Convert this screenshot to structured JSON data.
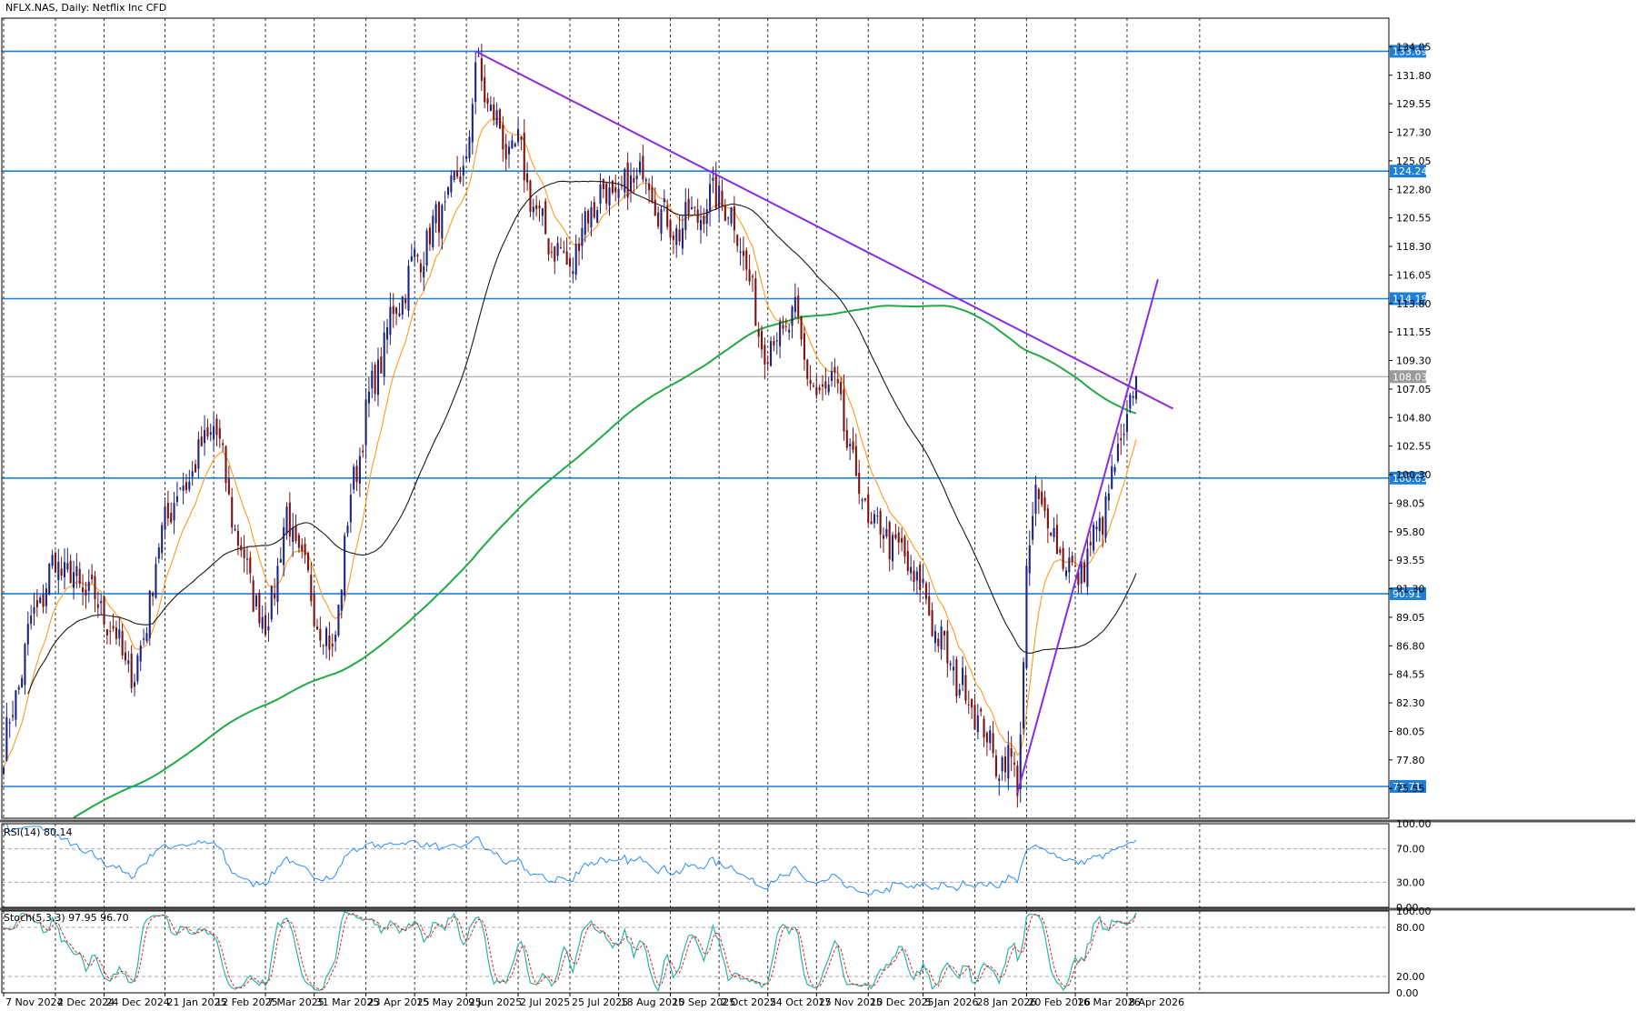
{
  "header": {
    "title": "NFLX.NAS, Daily:  Netflix Inc CFD"
  },
  "colors": {
    "bull": "#1a237e",
    "bear": "#7b1010",
    "bull_highlight": "#00a020",
    "ma_fast": "#ff9a1f",
    "ma_mid": "#1a1a1a",
    "ma_slow": "#22aa44",
    "hline": "#1e7fd8",
    "trend": "#8a2be2",
    "rsi": "#2a8cff",
    "stoch_main": "#2bb3a8",
    "stoch_signal": "#e02020",
    "grid": "#333333"
  },
  "chart_data": [
    {
      "type": "candlestick",
      "title": "NFLX.NAS, Daily:  Netflix Inc CFD",
      "x_tick_labels": [
        "7 Nov 2024",
        "2 Dec 2024",
        "24 Dec 2024",
        "21 Jan 2025",
        "12 Feb 2025",
        "7 Mar 2025",
        "31 Mar 2025",
        "23 Apr 2025",
        "15 May 2025",
        "9 Jun 2025",
        "2 Jul 2025",
        "25 Jul 2025",
        "18 Aug 2025",
        "10 Sep 2025",
        "2 Oct 2025",
        "24 Oct 2025",
        "17 Nov 2025",
        "10 Dec 2025",
        "5 Jan 2026",
        "28 Jan 2026",
        "20 Feb 2026",
        "16 Mar 2026",
        "8 Apr 2026"
      ],
      "y_tick_labels": [
        "134.05",
        "131.80",
        "129.55",
        "127.30",
        "125.05",
        "122.80",
        "120.55",
        "118.30",
        "116.05",
        "113.80",
        "111.55",
        "109.30",
        "107.05",
        "104.80",
        "102.55",
        "100.30",
        "98.05",
        "95.80",
        "93.55",
        "91.30",
        "89.05",
        "86.80",
        "84.55",
        "82.30",
        "80.05",
        "77.80",
        "75.55"
      ],
      "ylim": [
        73.2,
        136.3
      ],
      "price_levels": [
        {
          "label": "133.69",
          "value": 133.69,
          "style": "support-resistance"
        },
        {
          "label": "124.24",
          "value": 124.24,
          "style": "support-resistance"
        },
        {
          "label": "114.18",
          "value": 114.18,
          "style": "support-resistance"
        },
        {
          "label": "108.03",
          "value": 108.03,
          "style": "current-price"
        },
        {
          "label": "100.03",
          "value": 100.03,
          "style": "support-resistance"
        },
        {
          "label": "90.91",
          "value": 90.91,
          "style": "support-resistance"
        },
        {
          "label": "75.71",
          "value": 75.71,
          "style": "support-resistance"
        }
      ],
      "trendlines": [
        {
          "from": {
            "date": "12 Jun 2025",
            "price": 133.69
          },
          "to": {
            "date": "30 Apr 2026",
            "price": 105.5
          }
        },
        {
          "from": {
            "date": "17 Feb 2026",
            "price": 75.2
          },
          "to": {
            "date": "23 Apr 2026",
            "price": 115.7
          }
        }
      ],
      "anchors": [
        [
          "7 Nov 2024",
          78.5
        ],
        [
          "20 Nov 2024",
          88.5
        ],
        [
          "2 Dec 2024",
          93.5
        ],
        [
          "24 Dec 2024",
          89.5
        ],
        [
          "7 Jan 2025",
          84.0
        ],
        [
          "21 Jan 2025",
          97.0
        ],
        [
          "5 Feb 2025",
          101.5
        ],
        [
          "12 Feb 2025",
          104.5
        ],
        [
          "24 Feb 2025",
          95.0
        ],
        [
          "7 Mar 2025",
          88.0
        ],
        [
          "18 Mar 2025",
          97.0
        ],
        [
          "31 Mar 2025",
          90.0
        ],
        [
          "8 Apr 2025",
          86.0
        ],
        [
          "16 Apr 2025",
          98.5
        ],
        [
          "23 Apr 2025",
          105.0
        ],
        [
          "5 May 2025",
          112.5
        ],
        [
          "15 May 2025",
          117.0
        ],
        [
          "28 May 2025",
          121.0
        ],
        [
          "9 Jun 2025",
          125.0
        ],
        [
          "12 Jun 2025",
          132.5
        ],
        [
          "20 Jun 2025",
          128.5
        ],
        [
          "27 Jun 2025",
          125.5
        ],
        [
          "2 Jul 2025",
          126.0
        ],
        [
          "11 Jul 2025",
          120.0
        ],
        [
          "25 Jul 2025",
          116.5
        ],
        [
          "1 Aug 2025",
          120.5
        ],
        [
          "8 Aug 2025",
          122.5
        ],
        [
          "18 Aug 2025",
          122.0
        ],
        [
          "28 Aug 2025",
          124.5
        ],
        [
          "10 Sep 2025",
          119.5
        ],
        [
          "19 Sep 2025",
          120.5
        ],
        [
          "2 Oct 2025",
          122.5
        ],
        [
          "13 Oct 2025",
          119.0
        ],
        [
          "21 Oct 2025",
          111.5
        ],
        [
          "24 Oct 2025",
          110.5
        ],
        [
          "6 Nov 2025",
          112.5
        ],
        [
          "17 Nov 2025",
          106.0
        ],
        [
          "24 Nov 2025",
          108.0
        ],
        [
          "1 Dec 2025",
          103.0
        ],
        [
          "10 Dec 2025",
          96.5
        ],
        [
          "22 Dec 2025",
          95.0
        ],
        [
          "5 Jan 2026",
          91.0
        ],
        [
          "15 Jan 2026",
          85.5
        ],
        [
          "28 Jan 2026",
          82.0
        ],
        [
          "5 Feb 2026",
          78.0
        ],
        [
          "13 Feb 2026",
          77.5
        ],
        [
          "17 Feb 2026",
          76.5
        ],
        [
          "19 Feb 2026",
          85.0
        ],
        [
          "20 Feb 2026",
          91.5
        ],
        [
          "25 Feb 2026",
          99.0
        ],
        [
          "5 Mar 2026",
          95.5
        ],
        [
          "16 Mar 2026",
          92.0
        ],
        [
          "25 Mar 2026",
          95.5
        ],
        [
          "2 Apr 2026",
          100.5
        ],
        [
          "8 Apr 2026",
          104.5
        ],
        [
          "13 Apr 2026",
          108.0
        ]
      ],
      "last_date": "13 Apr 2026",
      "last_close": 108.03,
      "indicators": [
        "MA fast",
        "MA mid",
        "MA slow"
      ]
    },
    {
      "type": "line",
      "title": "RSI(14) 80.14",
      "y_tick_labels": [
        "100.00",
        "70.00",
        "30.00",
        "0.00"
      ],
      "ylim": [
        0,
        100
      ],
      "levels": [
        70,
        30
      ],
      "last_value": 80.14
    },
    {
      "type": "line",
      "title": "Stoch(5,3,3) 97.95 96.70",
      "y_tick_labels": [
        "100.00",
        "80.00",
        "20.00",
        "0.00"
      ],
      "ylim": [
        0,
        100
      ],
      "levels": [
        80,
        20
      ],
      "last_values": [
        97.95,
        96.7
      ]
    }
  ]
}
